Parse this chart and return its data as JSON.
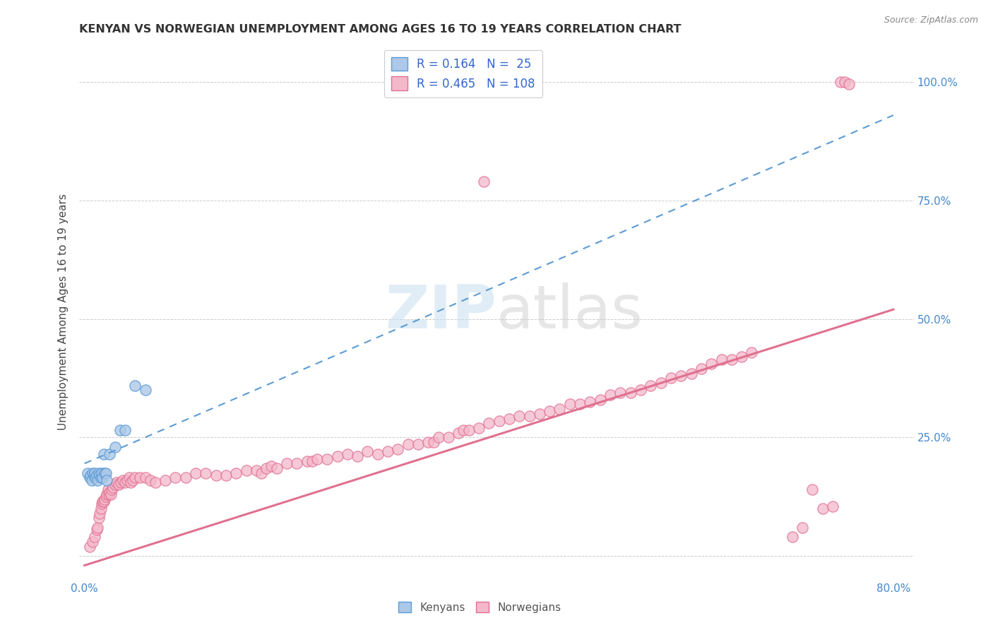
{
  "title": "KENYAN VS NORWEGIAN UNEMPLOYMENT AMONG AGES 16 TO 19 YEARS CORRELATION CHART",
  "source": "Source: ZipAtlas.com",
  "ylabel": "Unemployment Among Ages 16 to 19 years",
  "xlim": [
    -0.005,
    0.82
  ],
  "ylim": [
    -0.05,
    1.08
  ],
  "x_ticks": [
    0.0,
    0.1,
    0.2,
    0.3,
    0.4,
    0.5,
    0.6,
    0.7,
    0.8
  ],
  "x_tick_labels_left": "0.0%",
  "x_tick_labels_right": "80.0%",
  "y_ticks": [
    0.0,
    0.25,
    0.5,
    0.75,
    1.0
  ],
  "y_tick_labels": [
    "",
    "25.0%",
    "50.0%",
    "75.0%",
    "100.0%"
  ],
  "legend_R_kenya": "0.164",
  "legend_N_kenya": "25",
  "legend_R_norway": "0.465",
  "legend_N_norway": "108",
  "kenya_color": "#adc8e8",
  "kenya_edge_color": "#5b9bd5",
  "norway_color": "#f4b8cb",
  "norway_edge_color": "#e07090",
  "kenya_line_color": "#5b9bd5",
  "norway_line_color": "#e07090",
  "background_color": "#ffffff",
  "grid_color": "#cccccc",
  "kenya_line_x0": 0.0,
  "kenya_line_y0": 0.195,
  "kenya_line_x1": 0.8,
  "kenya_line_y1": 0.93,
  "norway_line_x0": 0.0,
  "norway_line_y0": -0.02,
  "norway_line_x1": 0.8,
  "norway_line_y1": 0.52,
  "kenya_x": [
    0.003,
    0.005,
    0.006,
    0.007,
    0.008,
    0.009,
    0.01,
    0.011,
    0.012,
    0.013,
    0.014,
    0.015,
    0.016,
    0.017,
    0.018,
    0.019,
    0.02,
    0.021,
    0.022,
    0.025,
    0.03,
    0.035,
    0.04,
    0.05,
    0.06
  ],
  "kenya_y": [
    0.175,
    0.165,
    0.17,
    0.16,
    0.175,
    0.17,
    0.175,
    0.165,
    0.17,
    0.16,
    0.175,
    0.17,
    0.165,
    0.175,
    0.165,
    0.215,
    0.175,
    0.175,
    0.16,
    0.215,
    0.23,
    0.265,
    0.265,
    0.36,
    0.35
  ],
  "norway_x": [
    0.005,
    0.008,
    0.01,
    0.012,
    0.013,
    0.014,
    0.015,
    0.016,
    0.017,
    0.018,
    0.019,
    0.02,
    0.021,
    0.022,
    0.023,
    0.024,
    0.025,
    0.026,
    0.027,
    0.028,
    0.03,
    0.032,
    0.034,
    0.036,
    0.038,
    0.04,
    0.042,
    0.044,
    0.046,
    0.048,
    0.05,
    0.055,
    0.06,
    0.065,
    0.07,
    0.08,
    0.09,
    0.1,
    0.11,
    0.12,
    0.13,
    0.14,
    0.15,
    0.16,
    0.17,
    0.175,
    0.18,
    0.185,
    0.19,
    0.2,
    0.21,
    0.22,
    0.225,
    0.23,
    0.24,
    0.25,
    0.26,
    0.27,
    0.28,
    0.29,
    0.3,
    0.31,
    0.32,
    0.33,
    0.34,
    0.345,
    0.35,
    0.36,
    0.37,
    0.375,
    0.38,
    0.39,
    0.395,
    0.4,
    0.41,
    0.42,
    0.43,
    0.44,
    0.45,
    0.46,
    0.47,
    0.48,
    0.49,
    0.5,
    0.51,
    0.52,
    0.53,
    0.54,
    0.55,
    0.56,
    0.57,
    0.58,
    0.59,
    0.6,
    0.61,
    0.62,
    0.63,
    0.64,
    0.65,
    0.66,
    0.7,
    0.71,
    0.72,
    0.73,
    0.74,
    0.748,
    0.752,
    0.756
  ],
  "norway_y": [
    0.02,
    0.03,
    0.04,
    0.055,
    0.06,
    0.08,
    0.09,
    0.1,
    0.11,
    0.115,
    0.115,
    0.12,
    0.125,
    0.13,
    0.14,
    0.13,
    0.135,
    0.13,
    0.14,
    0.145,
    0.15,
    0.155,
    0.15,
    0.155,
    0.16,
    0.155,
    0.16,
    0.165,
    0.155,
    0.16,
    0.165,
    0.165,
    0.165,
    0.16,
    0.155,
    0.16,
    0.165,
    0.165,
    0.175,
    0.175,
    0.17,
    0.17,
    0.175,
    0.18,
    0.18,
    0.175,
    0.185,
    0.19,
    0.185,
    0.195,
    0.195,
    0.2,
    0.2,
    0.205,
    0.205,
    0.21,
    0.215,
    0.21,
    0.22,
    0.215,
    0.22,
    0.225,
    0.235,
    0.235,
    0.24,
    0.24,
    0.25,
    0.25,
    0.26,
    0.265,
    0.265,
    0.27,
    0.79,
    0.28,
    0.285,
    0.29,
    0.295,
    0.295,
    0.3,
    0.305,
    0.31,
    0.32,
    0.32,
    0.325,
    0.33,
    0.34,
    0.345,
    0.345,
    0.35,
    0.36,
    0.365,
    0.375,
    0.38,
    0.385,
    0.395,
    0.405,
    0.415,
    0.415,
    0.42,
    0.43,
    0.04,
    0.06,
    0.14,
    0.1,
    0.105,
    1.0,
    1.0,
    0.995
  ]
}
